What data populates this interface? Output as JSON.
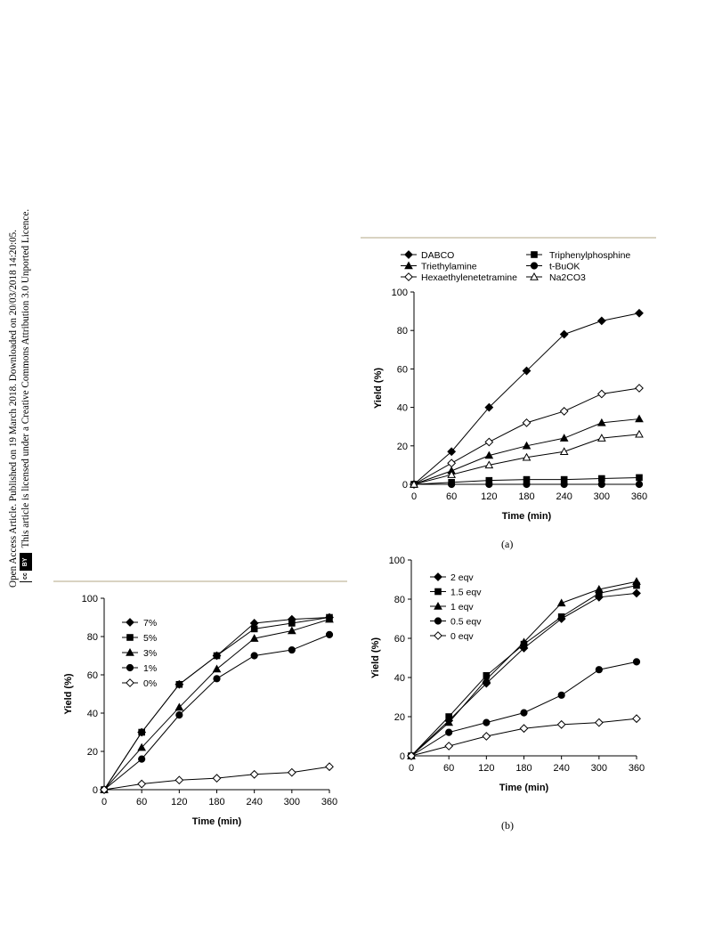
{
  "sidebar": {
    "line1": "Open Access Article. Published on 19 March 2018. Downloaded on 20/03/2018 14:20:05.",
    "line2": "This article is licensed under a Creative Commons Attribution 3.0 Unported Licence.",
    "badge_cc": "cc",
    "badge_by": "BY"
  },
  "captions": {
    "a": "(a)",
    "b": "(b)"
  },
  "chart_data": [
    {
      "id": "a",
      "type": "line",
      "caption": "(a)",
      "xlabel": "Time (min)",
      "ylabel": "Yield (%)",
      "xlim": [
        0,
        360
      ],
      "ylim": [
        0,
        100
      ],
      "xticks": [
        0,
        60,
        120,
        180,
        240,
        300,
        360
      ],
      "yticks": [
        0,
        20,
        40,
        60,
        80,
        100
      ],
      "grid": false,
      "legend": "top, two columns",
      "x": [
        0,
        60,
        120,
        180,
        240,
        300,
        360
      ],
      "series": [
        {
          "name": "DABCO",
          "marker": "diamond-filled",
          "values": [
            0,
            17,
            40,
            59,
            78,
            85,
            89
          ]
        },
        {
          "name": "Triphenylphosphine",
          "marker": "square-filled",
          "values": [
            0,
            1,
            2,
            2.5,
            2.5,
            3,
            3.5
          ]
        },
        {
          "name": "Triethylamine",
          "marker": "triangle-filled",
          "values": [
            0,
            7,
            15,
            20,
            24,
            32,
            34
          ]
        },
        {
          "name": "t-BuOK",
          "marker": "circle-filled",
          "values": [
            0,
            0,
            0,
            0,
            0,
            0,
            0
          ]
        },
        {
          "name": "Hexaethylenetetramine",
          "marker": "diamond-open",
          "values": [
            0,
            11,
            22,
            32,
            38,
            47,
            50
          ]
        },
        {
          "name": "Na2CO3",
          "marker": "triangle-open",
          "values": [
            0,
            5,
            10,
            14,
            17,
            24,
            26
          ]
        }
      ]
    },
    {
      "id": "b",
      "type": "line",
      "caption": "(b)",
      "xlabel": "Time (min)",
      "ylabel": "Yield (%)",
      "xlim": [
        0,
        360
      ],
      "ylim": [
        0,
        100
      ],
      "xticks": [
        0,
        60,
        120,
        180,
        240,
        300,
        360
      ],
      "yticks": [
        0,
        20,
        40,
        60,
        80,
        100
      ],
      "grid": false,
      "legend": "top-left, inside",
      "x": [
        0,
        60,
        120,
        180,
        240,
        300,
        360
      ],
      "series": [
        {
          "name": "2 eqv",
          "marker": "diamond-filled",
          "values": [
            0,
            18,
            37,
            55,
            70,
            81,
            83
          ]
        },
        {
          "name": "1.5 eqv",
          "marker": "square-filled",
          "values": [
            0,
            20,
            41,
            57,
            71,
            83,
            87
          ]
        },
        {
          "name": "1 eqv",
          "marker": "triangle-filled",
          "values": [
            0,
            17,
            39,
            58,
            78,
            85,
            89
          ]
        },
        {
          "name": "0.5 eqv",
          "marker": "circle-filled",
          "values": [
            0,
            12,
            17,
            22,
            31,
            44,
            48
          ]
        },
        {
          "name": "0 eqv",
          "marker": "diamond-open",
          "values": [
            0,
            5,
            10,
            14,
            16,
            17,
            19
          ]
        }
      ]
    },
    {
      "id": "c",
      "type": "line",
      "xlabel": "Time (min)",
      "ylabel": "Yield (%)",
      "xlim": [
        0,
        360
      ],
      "ylim": [
        0,
        100
      ],
      "xticks": [
        0,
        60,
        120,
        180,
        240,
        300,
        360
      ],
      "yticks": [
        0,
        20,
        40,
        60,
        80,
        100
      ],
      "grid": false,
      "legend": "top-left, inside",
      "x": [
        0,
        60,
        120,
        180,
        240,
        300,
        360
      ],
      "series": [
        {
          "name": "7%",
          "marker": "diamond-filled",
          "values": [
            0,
            30,
            55,
            70,
            87,
            89,
            90
          ]
        },
        {
          "name": "5%",
          "marker": "square-filled",
          "values": [
            0,
            30,
            55,
            70,
            84,
            87,
            90
          ]
        },
        {
          "name": "3%",
          "marker": "triangle-filled",
          "values": [
            0,
            22,
            43,
            63,
            79,
            83,
            89
          ]
        },
        {
          "name": "1%",
          "marker": "circle-filled",
          "values": [
            0,
            16,
            39,
            58,
            70,
            73,
            81
          ]
        },
        {
          "name": "0%",
          "marker": "diamond-open",
          "values": [
            0,
            3,
            5,
            6,
            8,
            9,
            12
          ]
        }
      ]
    }
  ]
}
